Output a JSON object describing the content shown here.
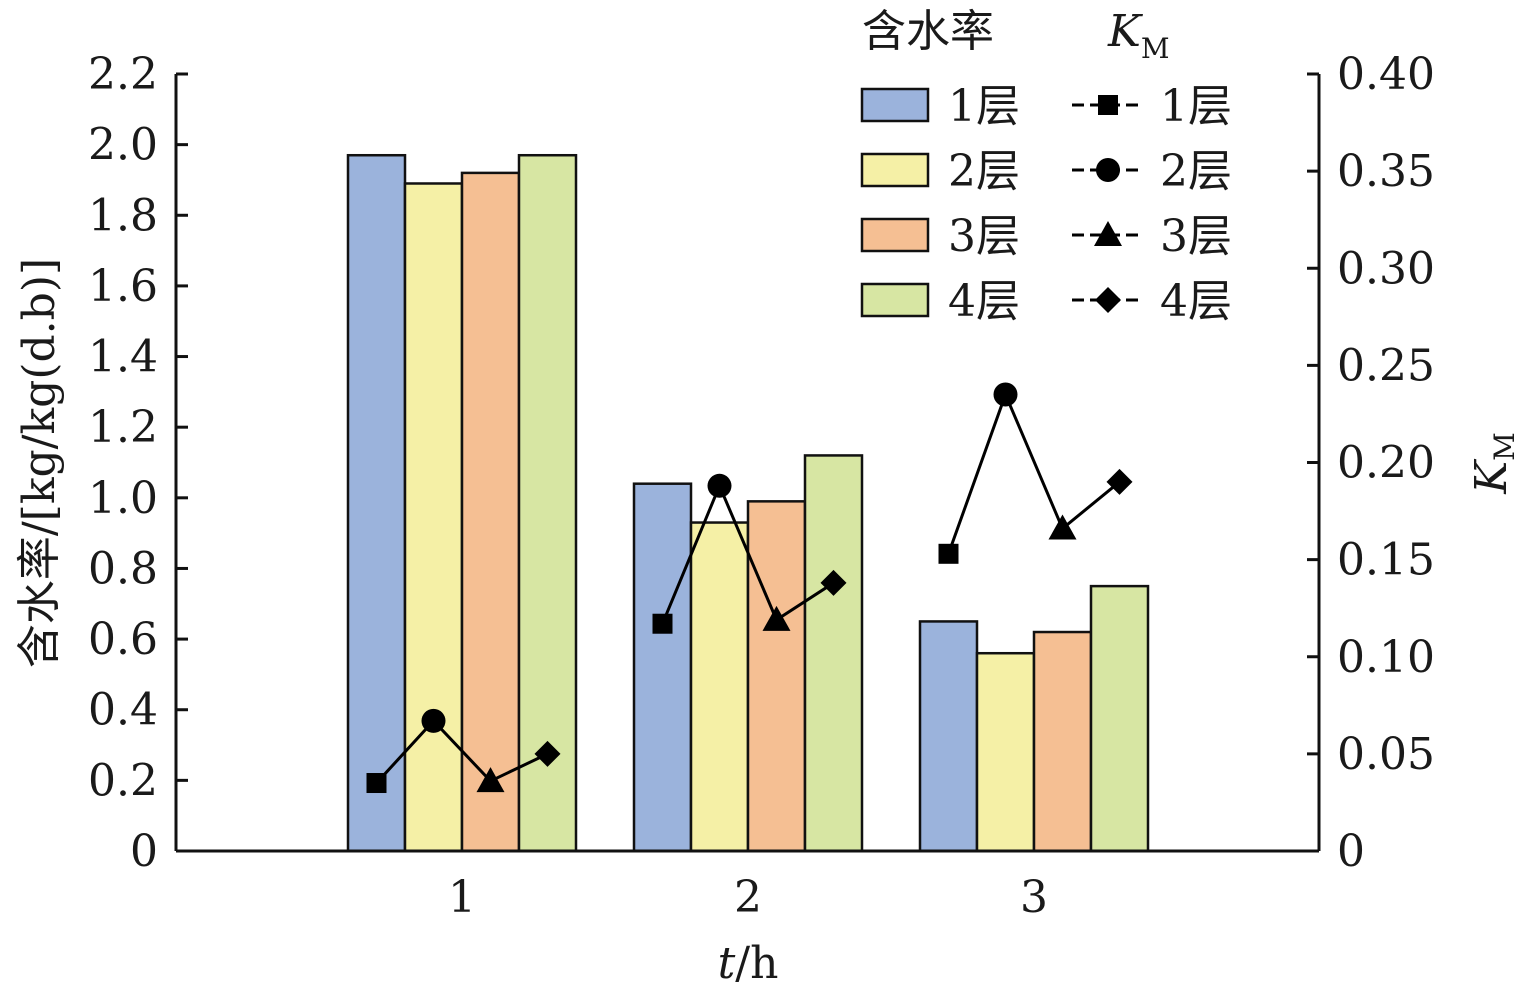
{
  "chart_data": {
    "type": "bar",
    "categories": [
      "1",
      "2",
      "3"
    ],
    "xlabel_italic": "t",
    "xlabel_rest": "/h",
    "ylabel": "含水率/[kg/kg(d.b)]",
    "y2label_main": "K",
    "y2label_sub": "M",
    "ylim": [
      0,
      2.2
    ],
    "y2lim": [
      0,
      0.4
    ],
    "yticks": [
      "0",
      "0.2",
      "0.4",
      "0.6",
      "0.8",
      "1.0",
      "1.2",
      "1.4",
      "1.6",
      "1.8",
      "2.0",
      "2.2"
    ],
    "y2ticks": [
      "0",
      "0.05",
      "0.10",
      "0.15",
      "0.20",
      "0.25",
      "0.30",
      "0.35",
      "0.40"
    ],
    "grid": false,
    "legend_position": "top-right",
    "legend_bar_title": "含水率",
    "legend_line_title_main": "K",
    "legend_line_title_sub": "M",
    "bar_series": [
      {
        "name": "1层",
        "color": "#9bb3dc",
        "values": [
          1.97,
          1.04,
          0.65
        ]
      },
      {
        "name": "2层",
        "color": "#f5f0a6",
        "values": [
          1.89,
          0.93,
          0.56
        ]
      },
      {
        "name": "3层",
        "color": "#f5bf93",
        "values": [
          1.92,
          0.99,
          0.62
        ]
      },
      {
        "name": "4层",
        "color": "#d7e6a3",
        "values": [
          1.97,
          1.12,
          0.75
        ]
      }
    ],
    "line_series": [
      {
        "name": "1层",
        "marker": "square",
        "values": [
          0.035,
          0.117,
          0.153
        ]
      },
      {
        "name": "2层",
        "marker": "circle",
        "values": [
          0.067,
          0.188,
          0.235
        ]
      },
      {
        "name": "3层",
        "marker": "triangle",
        "values": [
          0.036,
          0.119,
          0.166
        ]
      },
      {
        "name": "4层",
        "marker": "diamond",
        "values": [
          0.05,
          0.138,
          0.19
        ]
      }
    ]
  }
}
